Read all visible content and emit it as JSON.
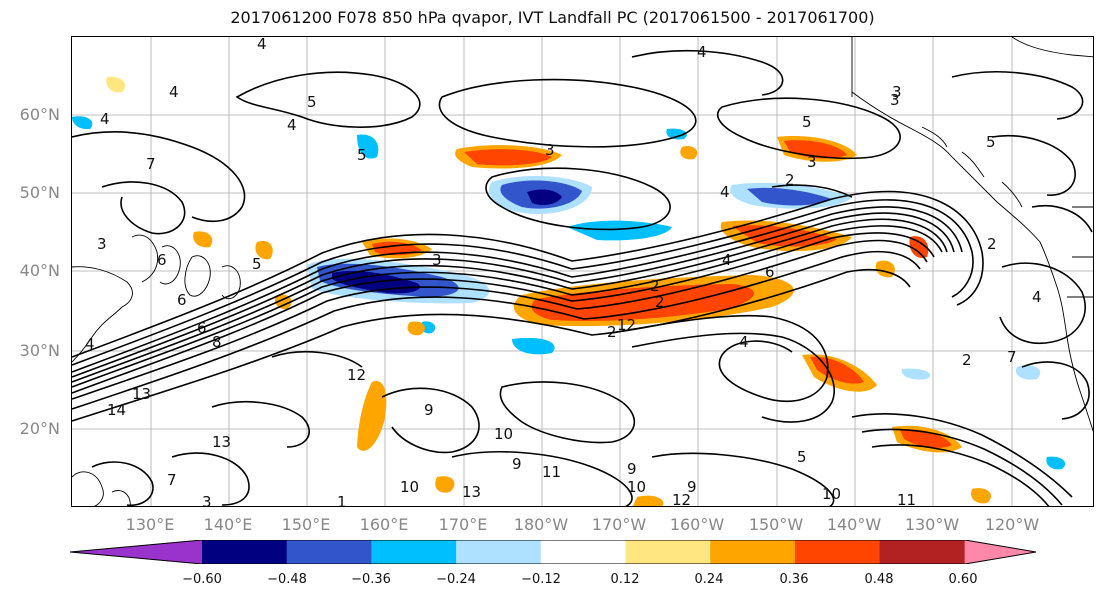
{
  "title": "2017061200 F078 850 hPa qvapor, IVT Landfall PC (2017061500 - 2017061700)",
  "lat_labels": [
    "60°N",
    "50°N",
    "40°N",
    "30°N",
    "20°N"
  ],
  "lon_labels": [
    "130°E",
    "140°E",
    "150°E",
    "160°E",
    "170°E",
    "180°W",
    "170°W",
    "160°W",
    "150°W",
    "140°W",
    "130°W",
    "120°W"
  ],
  "colorbar": {
    "colors": [
      "#9933cc",
      "#000080",
      "#3355cc",
      "#00bfff",
      "#aee0ff",
      "#ffffff",
      "#ffe680",
      "#ffa500",
      "#ff4500",
      "#b22222",
      "#ff88aa"
    ],
    "ticks": [
      "−0.60",
      "−0.48",
      "−0.36",
      "−0.24",
      "−0.12",
      "0.12",
      "0.24",
      "0.36",
      "0.48",
      "0.60"
    ]
  },
  "contour_labels": [
    "4",
    "4",
    "4",
    "5",
    "4",
    "4",
    "3",
    "3",
    "3",
    "5",
    "5",
    "7",
    "2",
    "3",
    "4",
    "2",
    "3",
    "5",
    "4",
    "6",
    "6",
    "8",
    "5",
    "3",
    "6",
    "4",
    "6",
    "2",
    "2",
    "2",
    "12",
    "4",
    "2",
    "7",
    "12",
    "14",
    "13",
    "9",
    "13",
    "10",
    "9",
    "11",
    "10",
    "9",
    "7",
    "12",
    "10",
    "9",
    "10",
    "11",
    "13",
    "3",
    "5",
    "4",
    "1"
  ]
}
